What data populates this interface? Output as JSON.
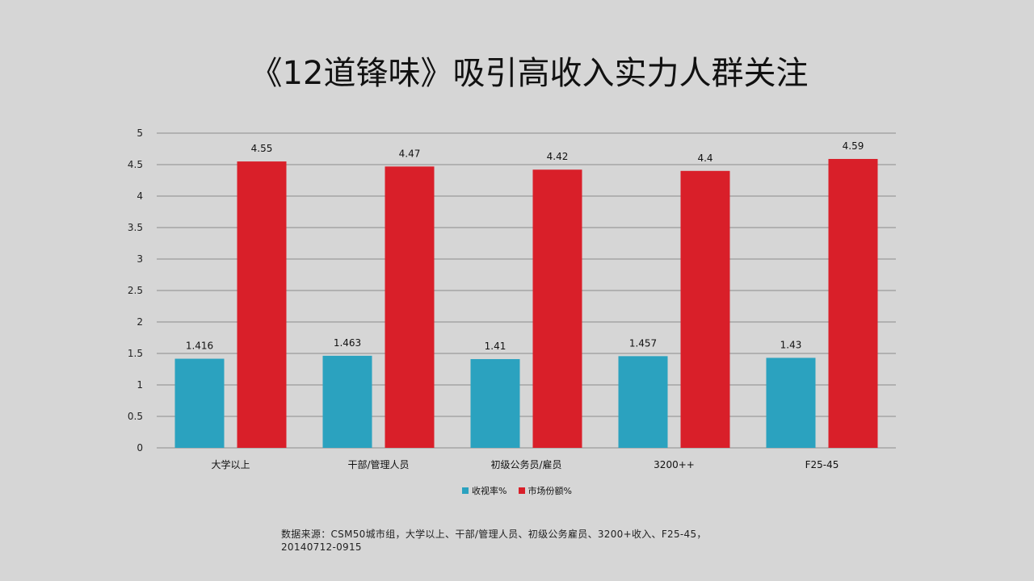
{
  "title": "《12道锋味》吸引高收入实力人群关注",
  "source_note": "数据来源：CSM50城市组，大学以上、干部/管理人员、初级公务雇员、3200+收入、F25-45，20140712-0915",
  "colors": {
    "series1": "#2ba2bf",
    "series2": "#d91f29",
    "grid": "#8c8c8c",
    "background": "#d6d6d6"
  },
  "chart_data": {
    "type": "bar",
    "title": "",
    "xlabel": "",
    "ylabel": "",
    "categories": [
      "大学以上",
      "干部/管理人员",
      "初级公务员/雇员",
      "3200++",
      "F25-45"
    ],
    "series": [
      {
        "name": "收视率%",
        "values": [
          1.416,
          1.463,
          1.41,
          1.457,
          1.43
        ]
      },
      {
        "name": "市场份额%",
        "values": [
          4.55,
          4.47,
          4.42,
          4.4,
          4.59
        ]
      }
    ],
    "ylim": [
      0,
      5
    ],
    "yticks": [
      "0",
      "0.5",
      "1",
      "1.5",
      "2",
      "2.5",
      "3",
      "3.5",
      "4",
      "4.5",
      "5"
    ],
    "grid": true,
    "legend": "bottom"
  }
}
